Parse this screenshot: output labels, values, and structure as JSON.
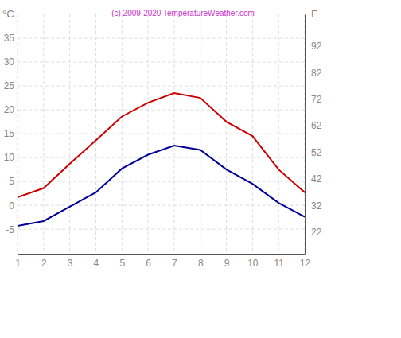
{
  "chart_data": {
    "type": "line",
    "title": "(c) 2009-2020 TemperatureWeather.com",
    "y_label": "°C",
    "y2_label": "F",
    "x": [
      1,
      2,
      3,
      4,
      5,
      6,
      7,
      8,
      9,
      10,
      11,
      12
    ],
    "xlim": [
      1,
      12
    ],
    "xticks": [
      1,
      2,
      3,
      4,
      5,
      6,
      7,
      8,
      9,
      10,
      11,
      12
    ],
    "ylim": [
      -10.3,
      40
    ],
    "yticks": [
      -5,
      0,
      5,
      10,
      15,
      20,
      25,
      30,
      35
    ],
    "y2lim": [
      13.46,
      104
    ],
    "y2ticks": [
      22,
      32,
      42,
      52,
      62,
      72,
      82,
      92
    ],
    "grid": true,
    "series": [
      {
        "color": "#cc0000",
        "values": [
          1.7,
          3.6,
          8.7,
          13.6,
          18.6,
          21.5,
          23.5,
          22.5,
          17.5,
          14.5,
          7.5,
          2.7
        ]
      },
      {
        "color": "#000099",
        "values": [
          -4.3,
          -3.3,
          -0.3,
          2.7,
          7.7,
          10.6,
          12.5,
          11.6,
          7.5,
          4.5,
          0.5,
          -2.4
        ]
      }
    ]
  }
}
